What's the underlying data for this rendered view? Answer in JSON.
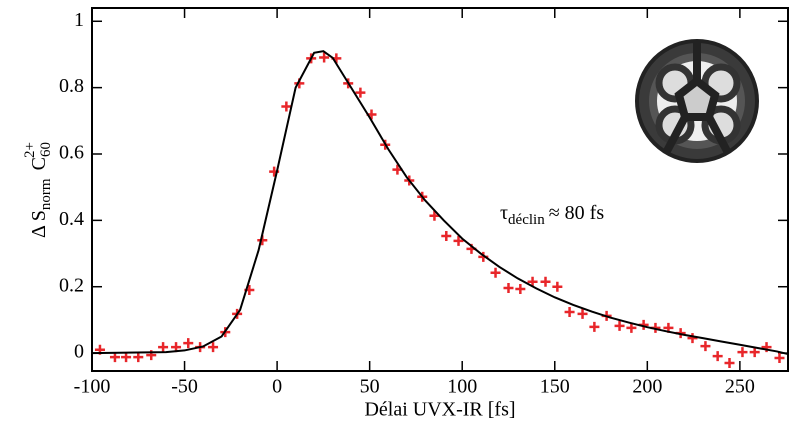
{
  "chart_data": {
    "type": "scatter",
    "x_label": "Délai UVX-IR [fs]",
    "y_label": {
      "delta": "Δ S",
      "sub": "norm",
      "ion": "C",
      "ion_sub": "60",
      "ion_sup": "2+"
    },
    "annotation": {
      "symbol": "τ",
      "sub": "déclin",
      "text": "≈ 80 fs"
    },
    "xlim": [
      -100,
      276
    ],
    "ylim": [
      -0.054,
      1.04
    ],
    "xticks": [
      -100,
      -50,
      0,
      50,
      100,
      150,
      200,
      250
    ],
    "yticks": [
      0,
      0.2,
      0.4,
      0.6,
      0.8,
      1
    ],
    "series": [
      {
        "color": "#e8262a",
        "marker": "+",
        "x": [
          -95.7,
          -87.6,
          -81.6,
          -75,
          -68,
          -61.6,
          -54.6,
          -48,
          -41.6,
          -34.6,
          -28,
          -21.6,
          -15,
          -8,
          -1.6,
          5,
          12,
          18.4,
          25.4,
          32,
          38.4,
          45,
          51,
          58.4,
          65,
          71.4,
          78.4,
          85,
          91.4,
          98,
          105,
          111.4,
          118,
          125,
          131.4,
          138,
          145,
          151.4,
          158,
          165,
          171.4,
          178,
          185,
          191.4,
          198,
          204.4,
          211.4,
          218,
          224.4,
          231.4,
          238,
          244.4,
          251.4,
          258,
          264.4,
          271.4
        ],
        "values": [
          0.01,
          -0.012,
          -0.012,
          -0.012,
          -0.006,
          0.018,
          0.018,
          0.03,
          0.018,
          0.018,
          0.063,
          0.118,
          0.19,
          0.34,
          0.547,
          0.743,
          0.813,
          0.888,
          0.891,
          0.888,
          0.813,
          0.785,
          0.719,
          0.628,
          0.553,
          0.52,
          0.471,
          0.414,
          0.353,
          0.338,
          0.314,
          0.29,
          0.242,
          0.196,
          0.193,
          0.215,
          0.215,
          0.2,
          0.124,
          0.118,
          0.079,
          0.112,
          0.082,
          0.076,
          0.085,
          0.076,
          0.076,
          0.06,
          0.045,
          0.021,
          -0.009,
          -0.03,
          0.003,
          0.003,
          0.018,
          -0.015
        ]
      },
      {
        "color": "#000000",
        "marker": "line",
        "x": [
          -100,
          -60,
          -50,
          -40,
          -30,
          -20,
          -10,
          0,
          10,
          20,
          25,
          30,
          40,
          50,
          60,
          70,
          80,
          90,
          100,
          110,
          120,
          130,
          140,
          150,
          160,
          170,
          180,
          190,
          200,
          210,
          220,
          230,
          240,
          250,
          260,
          270,
          276
        ],
        "values": [
          0,
          0.003,
          0.008,
          0.02,
          0.05,
          0.13,
          0.31,
          0.55,
          0.8,
          0.905,
          0.91,
          0.89,
          0.8,
          0.71,
          0.615,
          0.53,
          0.46,
          0.4,
          0.345,
          0.3,
          0.26,
          0.225,
          0.195,
          0.168,
          0.145,
          0.125,
          0.107,
          0.092,
          0.078,
          0.066,
          0.055,
          0.045,
          0.035,
          0.025,
          0.015,
          0.005,
          -0.003
        ]
      }
    ]
  }
}
